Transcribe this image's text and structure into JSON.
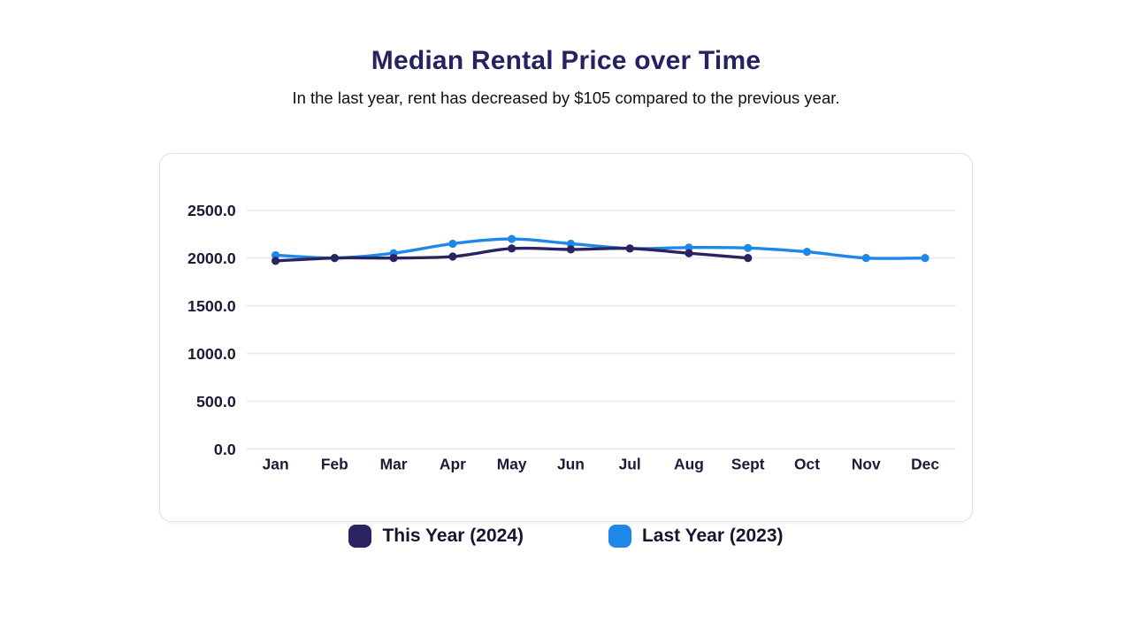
{
  "header": {
    "title": "Median Rental Price over Time",
    "subtitle": "In the last year, rent has decreased by $105 compared to the previous year."
  },
  "legend": {
    "items": [
      {
        "label": "This Year (2024)",
        "color": "#29235f"
      },
      {
        "label": "Last Year (2023)",
        "color": "#1e87e8"
      }
    ]
  },
  "chart_data": {
    "type": "line",
    "title": "Median Rental Price over Time",
    "subtitle": "In the last year, rent has decreased by $105 compared to the previous year.",
    "categories": [
      "Jan",
      "Feb",
      "Mar",
      "Apr",
      "May",
      "Jun",
      "Jul",
      "Aug",
      "Sept",
      "Oct",
      "Nov",
      "Dec"
    ],
    "series": [
      {
        "name": "This Year (2024)",
        "color": "#29235f",
        "values": [
          1970,
          2000,
          2000,
          2015,
          2100,
          2090,
          2100,
          2050,
          2000
        ]
      },
      {
        "name": "Last Year (2023)",
        "color": "#1e87e8",
        "values": [
          2030,
          2000,
          2050,
          2150,
          2200,
          2150,
          2100,
          2110,
          2105,
          2065,
          2000,
          2000
        ]
      }
    ],
    "xlabel": "",
    "ylabel": "",
    "ylim": [
      0,
      2500
    ],
    "yticks": [
      0,
      500,
      1000,
      1500,
      2000,
      2500
    ],
    "ytick_format": "one_decimal",
    "grid": true,
    "curve": "smooth",
    "legend_position": "bottom",
    "grid_color": "#e9e9eb",
    "axis_label_color": "#1b1b38"
  }
}
